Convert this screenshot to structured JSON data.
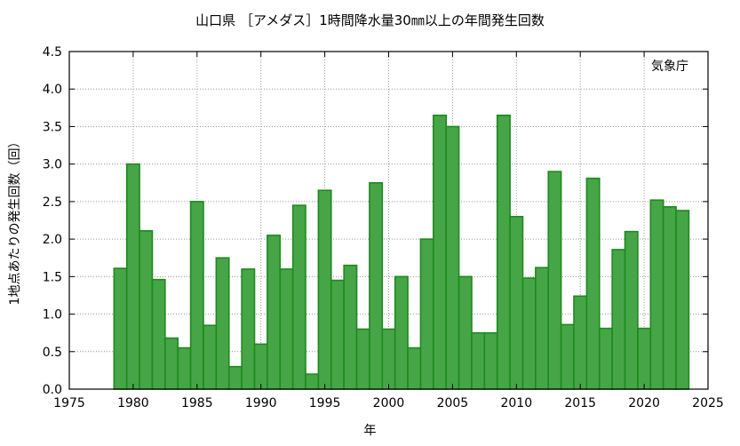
{
  "chart_data": {
    "type": "bar",
    "title": "山口県 ［アメダス］1時間降水量30㎜以上の年間発生回数",
    "xlabel": "年",
    "ylabel": "1地点あたりの発生回数（回）",
    "annotation": "気象庁",
    "xlim": [
      1975,
      2025
    ],
    "ylim": [
      0,
      4.5
    ],
    "xticks": [
      "1975",
      "1980",
      "1985",
      "1990",
      "1995",
      "2000",
      "2005",
      "2010",
      "2015",
      "2020",
      "2025"
    ],
    "yticks": [
      "0.0",
      "0.5",
      "1.0",
      "1.5",
      "2.0",
      "2.5",
      "3.0",
      "3.5",
      "4.0",
      "4.5"
    ],
    "grid": true,
    "bar_color": "#46a546",
    "bar_edge_color": "#1e8a1e",
    "categories": [
      1979,
      1980,
      1981,
      1982,
      1983,
      1984,
      1985,
      1986,
      1987,
      1988,
      1989,
      1990,
      1991,
      1992,
      1993,
      1994,
      1995,
      1996,
      1997,
      1998,
      1999,
      2000,
      2001,
      2002,
      2003,
      2004,
      2005,
      2006,
      2007,
      2008,
      2009,
      2010,
      2011,
      2012,
      2013,
      2014,
      2015,
      2016,
      2017,
      2018,
      2019,
      2020,
      2021,
      2022,
      2023
    ],
    "values": [
      1.61,
      3.0,
      2.11,
      1.46,
      0.68,
      0.55,
      2.5,
      0.85,
      1.75,
      0.3,
      1.6,
      0.6,
      2.05,
      1.6,
      2.45,
      0.2,
      2.65,
      1.45,
      1.65,
      0.8,
      2.75,
      0.8,
      1.5,
      0.55,
      2.0,
      3.65,
      3.5,
      1.5,
      0.75,
      0.75,
      3.65,
      2.3,
      1.48,
      1.62,
      2.9,
      0.86,
      1.24,
      2.81,
      0.81,
      1.86,
      2.1,
      0.81,
      2.52,
      2.43,
      2.38
    ]
  }
}
